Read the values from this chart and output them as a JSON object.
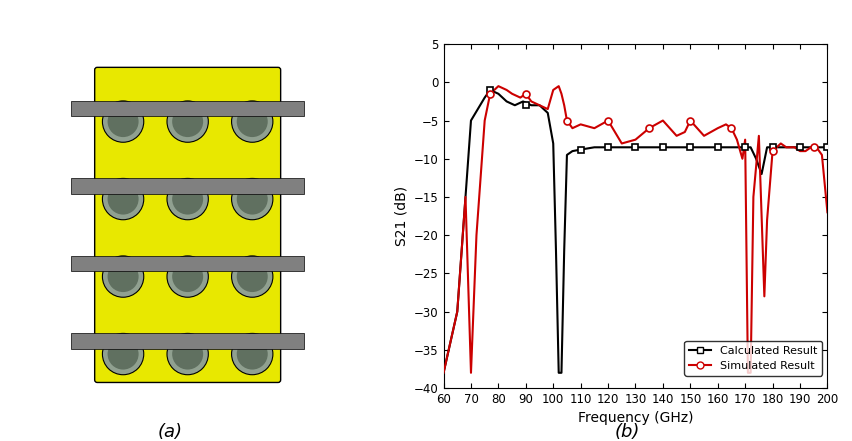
{
  "ylabel": "S21 (dB)",
  "xlabel": "Frequency (GHz)",
  "ylim": [
    -40,
    5
  ],
  "xlim": [
    60,
    200
  ],
  "yticks": [
    5,
    0,
    -5,
    -10,
    -15,
    -20,
    -25,
    -30,
    -35,
    -40
  ],
  "xticks": [
    60,
    70,
    80,
    90,
    100,
    110,
    120,
    130,
    140,
    150,
    160,
    170,
    180,
    190,
    200
  ],
  "label_a": "(a)",
  "label_b": "(b)",
  "legend_calculated": "Calculated Result",
  "legend_simulated": "Simulated Result",
  "calc_color": "#000000",
  "sim_color": "#cc0000",
  "calc_x": [
    60,
    65,
    70,
    75,
    77,
    80,
    83,
    86,
    89,
    92,
    95,
    98,
    100,
    101,
    102,
    103,
    104,
    105,
    107,
    110,
    115,
    120,
    125,
    130,
    135,
    140,
    145,
    150,
    155,
    160,
    165,
    170,
    172,
    174,
    175,
    176,
    178,
    180,
    185,
    190,
    195,
    200
  ],
  "calc_y": [
    -38,
    -30,
    -5,
    -2,
    -1,
    -1.5,
    -2.5,
    -3,
    -2.5,
    -3,
    -3,
    -4,
    -8,
    -22,
    -38,
    -38,
    -22,
    -9.5,
    -9,
    -8.8,
    -8.5,
    -8.5,
    -8.5,
    -8.5,
    -8.5,
    -8.5,
    -8.5,
    -8.5,
    -8.5,
    -8.5,
    -8.5,
    -8.5,
    -8.5,
    -10,
    -11,
    -12,
    -8.5,
    -8.5,
    -8.5,
    -8.5,
    -8.5,
    -8.5
  ],
  "sim_x": [
    60,
    65,
    68,
    70,
    72,
    75,
    77,
    80,
    83,
    85,
    88,
    90,
    92,
    95,
    98,
    100,
    102,
    103,
    104,
    105,
    107,
    110,
    115,
    120,
    125,
    130,
    135,
    140,
    145,
    148,
    150,
    155,
    160,
    163,
    165,
    167,
    169,
    170,
    171,
    172,
    173,
    175,
    177,
    178,
    180,
    183,
    185,
    188,
    190,
    192,
    194,
    196,
    198,
    200
  ],
  "sim_y": [
    -38,
    -30,
    -15,
    -38,
    -20,
    -5,
    -1.5,
    -0.5,
    -1,
    -1.5,
    -2,
    -1.5,
    -2.5,
    -3,
    -3.5,
    -1,
    -0.5,
    -1.5,
    -3,
    -5,
    -6,
    -5.5,
    -6,
    -5,
    -8,
    -7.5,
    -6,
    -5,
    -7,
    -6.5,
    -5,
    -7,
    -6,
    -5.5,
    -6,
    -7.5,
    -10,
    -7.5,
    -38,
    -38,
    -15,
    -7,
    -28,
    -18,
    -9,
    -8,
    -8.5,
    -8.5,
    -9,
    -9,
    -8.5,
    -8.5,
    -9.5,
    -17
  ],
  "calc_markers_x": [
    77,
    90,
    110,
    120,
    130,
    140,
    150,
    160,
    170,
    180,
    190,
    200
  ],
  "calc_markers_y": [
    -1,
    -3,
    -8.8,
    -8.5,
    -8.5,
    -8.5,
    -8.5,
    -8.5,
    -8.5,
    -8.5,
    -8.5,
    -8.5
  ],
  "sim_markers_x": [
    77,
    90,
    105,
    120,
    135,
    150,
    165,
    180,
    195
  ],
  "sim_markers_y": [
    -1.5,
    -1.5,
    -5,
    -5,
    -6,
    -5,
    -6,
    -9,
    -8.5
  ]
}
